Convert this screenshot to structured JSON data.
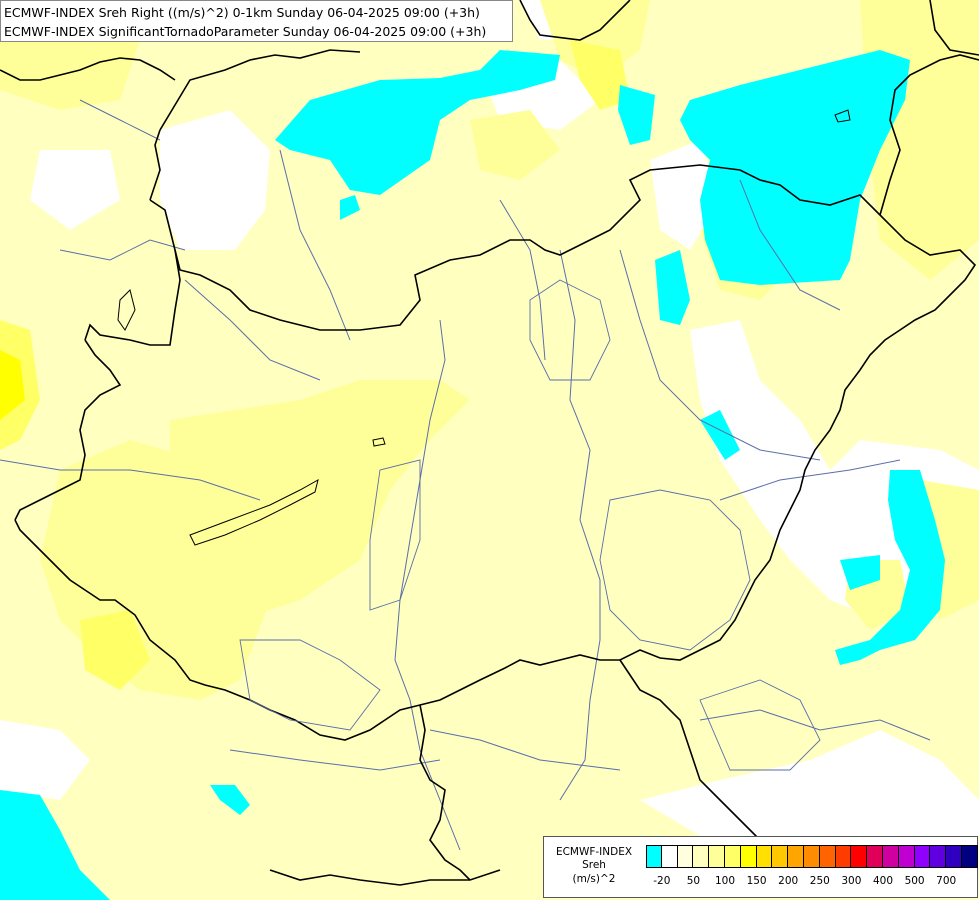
{
  "title": {
    "line1": "ECMWF-INDEX Sreh Right ((m/s)^2) 0-1km Sunday 06-04-2025 09:00 (+3h)",
    "line2": "ECMWF-INDEX SignificantTornadoParameter Sunday 06-04-2025 09:00 (+3h)"
  },
  "legend": {
    "model": "ECMWF-INDEX",
    "variable": "Sreh",
    "unit": "(m/s)^2",
    "colors": [
      "#00ffff",
      "#ffffff",
      "#ffffe0",
      "#ffffc0",
      "#ffff99",
      "#ffff66",
      "#ffff00",
      "#ffe000",
      "#ffc800",
      "#ffa500",
      "#ff8c00",
      "#ff6400",
      "#ff3c00",
      "#ff0000",
      "#e0005a",
      "#d000a0",
      "#c000d0",
      "#9000ff",
      "#6000e0",
      "#3000c0",
      "#000080"
    ],
    "ticks": [
      "-20",
      "50",
      "100",
      "150",
      "200",
      "250",
      "300",
      "400",
      "500",
      "700"
    ]
  },
  "colors": {
    "cyan": "#00ffff",
    "white": "#ffffff",
    "pale_yellow": "#ffffc0",
    "light_yellow": "#ffff99",
    "yellow": "#ffff66",
    "strong_yellow": "#ffff00",
    "border": "#000000",
    "river": "#5a6eaa"
  }
}
